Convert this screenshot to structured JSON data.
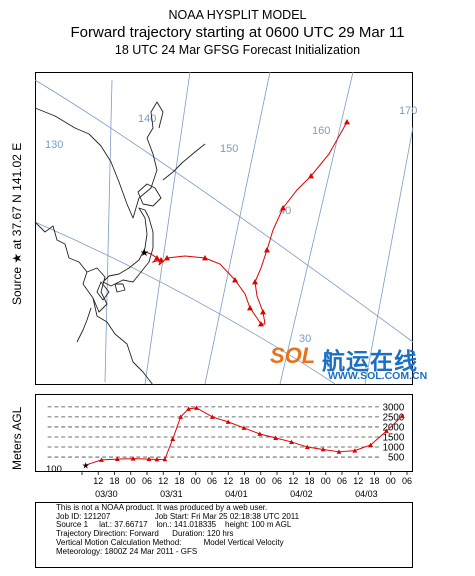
{
  "header": {
    "title": "NOAA HYSPLIT MODEL",
    "subtitle": "Forward trajectory starting at 0600 UTC 29 Mar 11",
    "init": "18 UTC 24 Mar    GFSG  Forecast Initialization"
  },
  "source_label": "Source ★ at   37.67 N  141.02 E",
  "meters_label": "Meters AGL",
  "map": {
    "meridian_labels": [
      "130",
      "140",
      "150",
      "160",
      "170"
    ],
    "parallel_labels": [
      "40",
      "30"
    ]
  },
  "chart_data": {
    "type": "line",
    "x_unit": "hours since start (0600 UTC 29 Mar 2011)",
    "duration_hours": 120,
    "series": [
      {
        "hours": [
          0,
          6,
          12,
          18,
          24,
          27,
          30,
          33,
          36,
          39,
          42,
          48,
          54,
          60,
          66,
          72,
          78,
          84,
          90,
          96,
          102,
          108,
          114,
          120
        ],
        "height_m_agl": [
          100,
          360,
          400,
          420,
          400,
          380,
          390,
          1400,
          2500,
          2900,
          2950,
          2500,
          2250,
          1950,
          1650,
          1450,
          1250,
          1000,
          880,
          760,
          820,
          1100,
          1800,
          2550
        ]
      }
    ],
    "y_ticks": [
      500,
      1000,
      1500,
      2000,
      2500,
      3000
    ],
    "y_min_label": "100",
    "ylim": [
      0,
      3300
    ],
    "grid": "dashed horizontal lines at 500 m intervals"
  },
  "time_axis": {
    "hour_labels": [
      "12",
      "18",
      "00",
      "06",
      "12",
      "18",
      "00",
      "06",
      "12",
      "18",
      "00",
      "06",
      "12",
      "18",
      "00",
      "06",
      "12",
      "18",
      "00",
      "06"
    ],
    "date_labels": [
      "03/30",
      "03/31",
      "04/01",
      "04/02",
      "04/03"
    ]
  },
  "footer": {
    "line1": "This is not a NOAA product. It was produced by a web user.",
    "line2": "Job ID: 121207                    Job Start: Fri Mar 25 02:18:38 UTC 2011",
    "line3": "Source 1     lat.: 37.66717    lon.: 141.018335    height: 100 m AGL",
    "line4": "Trajectory Direction: Forward      Duration: 120 hrs",
    "line5": "Vertical Motion Calculation Method:          Model Vertical Velocity",
    "line6": "Meteorology: 1800Z 24 Mar 2011 - GFS"
  },
  "logo": {
    "brand": "SOL",
    "chinese": "航运在线",
    "url": "WWW.SOL.COM.CN"
  },
  "colors": {
    "trajectory": "#e00000",
    "grid": "#7a9cc8",
    "coast": "#222222",
    "logo_orange": "#e8731c",
    "logo_blue": "#1a6fc4"
  }
}
